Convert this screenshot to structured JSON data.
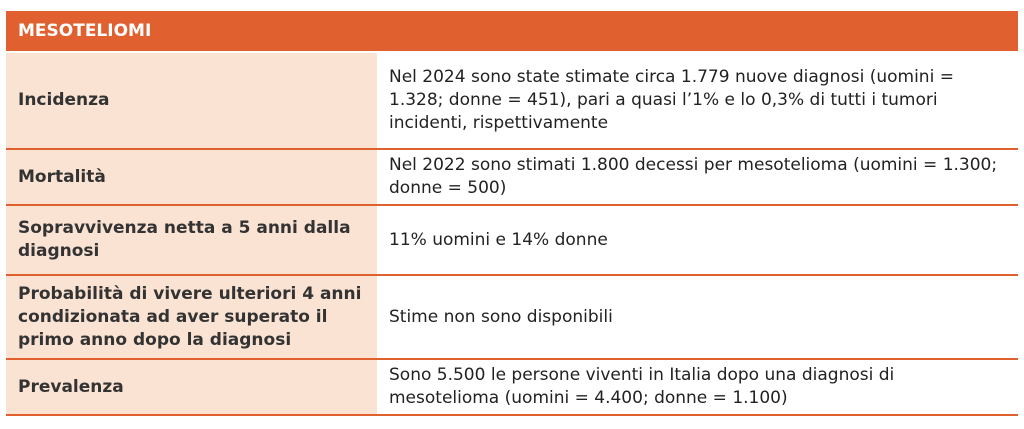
{
  "table": {
    "title": "MESOTELIOMI",
    "rows": [
      [
        "Incidenza",
        "Nel 2024 sono state stimate circa 1.779 nuove diagnosi (uomini = 1.328; donne = 451), pari a quasi l’1% e lo 0,3% di tutti i tumori incidenti, rispettivamente"
      ],
      [
        "Mortalità",
        "Nel 2022 sono stimati 1.800 decessi per mesotelioma (uomini = 1.300; donne = 500)"
      ],
      [
        "Sopravvivenza netta a 5 anni dalla diagnosi",
        "11% uomini e 14% donne"
      ],
      [
        "Probabilità di vivere ulteriori 4 anni condizionata ad aver superato il primo anno dopo la diagnosi",
        "Stime non sono disponibili"
      ],
      [
        "Prevalenza",
        "Sono 5.500 le persone viventi in Italia dopo una diagnosi di mesotelioma (uomini = 4.400; donne = 1.100)"
      ]
    ]
  }
}
